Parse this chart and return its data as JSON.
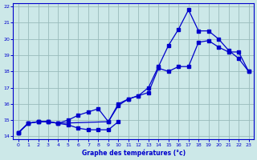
{
  "xlabel": "Graphe des températures (°c)",
  "xlim": [
    -0.5,
    23.5
  ],
  "ylim": [
    13.8,
    22.2
  ],
  "yticks": [
    14,
    15,
    16,
    17,
    18,
    19,
    20,
    21,
    22
  ],
  "xticks": [
    0,
    1,
    2,
    3,
    4,
    5,
    6,
    7,
    8,
    9,
    10,
    11,
    12,
    13,
    14,
    15,
    16,
    17,
    18,
    19,
    20,
    21,
    22,
    23
  ],
  "bg_color": "#cce8e8",
  "line_color": "#0000cc",
  "grid_color": "#99bbbb",
  "line1_x": [
    0,
    1,
    2,
    3,
    4,
    5,
    6,
    7,
    8,
    9,
    10
  ],
  "line1_y": [
    14.2,
    14.8,
    14.9,
    14.9,
    14.8,
    14.7,
    14.5,
    14.4,
    14.4,
    14.4,
    14.9
  ],
  "line2_x": [
    0,
    1,
    2,
    3,
    4,
    5,
    6,
    7,
    8,
    9,
    10,
    11,
    12,
    13,
    14,
    15,
    16,
    17,
    18,
    19,
    20,
    21,
    22,
    23
  ],
  "line2_y": [
    14.2,
    14.8,
    14.9,
    14.9,
    14.8,
    15.0,
    15.3,
    15.5,
    15.7,
    14.9,
    16.0,
    16.3,
    16.5,
    16.7,
    18.2,
    18.0,
    18.3,
    18.3,
    19.8,
    19.9,
    19.5,
    19.2,
    19.2,
    18.0
  ],
  "line3_x": [
    0,
    1,
    2,
    3,
    4,
    9,
    10,
    11,
    12,
    13,
    14,
    15,
    16,
    17,
    18,
    19,
    20,
    21,
    22,
    23
  ],
  "line3_y": [
    14.2,
    14.8,
    14.9,
    14.9,
    14.8,
    14.9,
    15.9,
    16.3,
    16.5,
    17.0,
    18.3,
    19.6,
    20.6,
    21.8,
    20.5,
    20.5,
    20.0,
    19.3,
    18.8,
    18.0
  ]
}
